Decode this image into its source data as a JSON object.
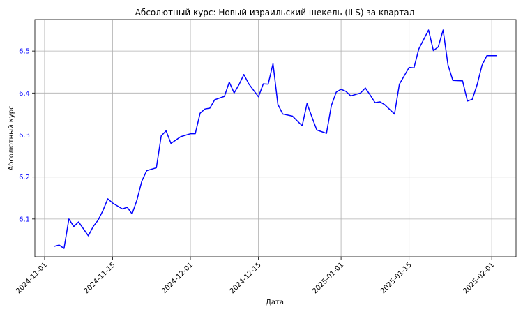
{
  "chart_data": {
    "type": "line",
    "title": "Абсолютный курс: Новый израильский шекель (ILS) за квартал",
    "xlabel": "Дата",
    "ylabel": "Абсолютный курс",
    "x_ticks": [
      "2024-11-01",
      "2024-11-15",
      "2024-12-01",
      "2024-12-15",
      "2025-01-01",
      "2025-01-15",
      "2025-02-01"
    ],
    "y_ticks": [
      6.1,
      6.2,
      6.3,
      6.4,
      6.5
    ],
    "xlim": [
      "2024-10-30",
      "2025-02-06"
    ],
    "ylim": [
      6.01,
      6.575
    ],
    "grid": true,
    "colors": {
      "line": "#0000ff",
      "ylabel": "#0000ff",
      "ytick": "#0000ff",
      "grid": "#b0b0b0"
    },
    "series": [
      {
        "x": [
          "2024-11-03",
          "2024-11-04",
          "2024-11-05",
          "2024-11-06",
          "2024-11-07",
          "2024-11-08",
          "2024-11-10",
          "2024-11-11",
          "2024-11-12",
          "2024-11-13",
          "2024-11-14",
          "2024-11-15",
          "2024-11-17",
          "2024-11-18",
          "2024-11-19",
          "2024-11-20",
          "2024-11-21",
          "2024-11-22",
          "2024-11-24",
          "2024-11-25",
          "2024-11-26",
          "2024-11-27",
          "2024-11-28",
          "2024-11-29",
          "2024-12-01",
          "2024-12-02",
          "2024-12-03",
          "2024-12-04",
          "2024-12-05",
          "2024-12-06",
          "2024-12-08",
          "2024-12-09",
          "2024-12-10",
          "2024-12-11",
          "2024-12-12",
          "2024-12-13",
          "2024-12-15",
          "2024-12-16",
          "2024-12-17",
          "2024-12-18",
          "2024-12-19",
          "2024-12-20",
          "2024-12-22",
          "2024-12-24",
          "2024-12-25",
          "2024-12-26",
          "2024-12-27",
          "2024-12-29",
          "2024-12-30",
          "2024-12-31",
          "2025-01-01",
          "2025-01-02",
          "2025-01-03",
          "2025-01-05",
          "2025-01-06",
          "2025-01-07",
          "2025-01-08",
          "2025-01-09",
          "2025-01-10",
          "2025-01-12",
          "2025-01-13",
          "2025-01-14",
          "2025-01-15",
          "2025-01-16",
          "2025-01-17",
          "2025-01-19",
          "2025-01-20",
          "2025-01-21",
          "2025-01-22",
          "2025-01-23",
          "2025-01-24",
          "2025-01-26",
          "2025-01-27",
          "2025-01-28",
          "2025-01-29",
          "2025-01-30",
          "2025-01-31",
          "2025-02-02"
        ],
        "y": [
          6.035,
          6.038,
          6.03,
          6.1,
          6.082,
          6.093,
          6.06,
          6.082,
          6.097,
          6.12,
          6.148,
          6.138,
          6.124,
          6.128,
          6.112,
          6.145,
          6.19,
          6.215,
          6.222,
          6.298,
          6.31,
          6.28,
          6.288,
          6.296,
          6.303,
          6.303,
          6.352,
          6.362,
          6.364,
          6.384,
          6.392,
          6.426,
          6.4,
          6.42,
          6.444,
          6.422,
          6.391,
          6.422,
          6.421,
          6.47,
          6.373,
          6.35,
          6.345,
          6.322,
          6.375,
          6.343,
          6.312,
          6.304,
          6.37,
          6.402,
          6.409,
          6.404,
          6.393,
          6.4,
          6.412,
          6.395,
          6.377,
          6.379,
          6.372,
          6.35,
          6.421,
          6.441,
          6.461,
          6.46,
          6.505,
          6.55,
          6.501,
          6.51,
          6.55,
          6.467,
          6.43,
          6.429,
          6.381,
          6.385,
          6.42,
          6.466,
          6.489,
          6.489
        ]
      }
    ]
  }
}
